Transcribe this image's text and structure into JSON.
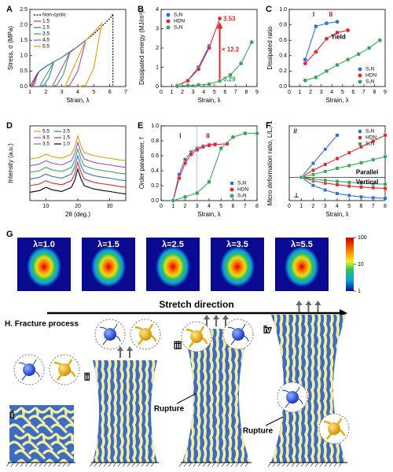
{
  "chart_data": [
    {
      "type": "line",
      "label": "A",
      "xlabel": "Strain, λ",
      "ylabel": "Stress, σ (MPa)",
      "xlim": [
        1,
        7
      ],
      "xticks": [
        1,
        2,
        3,
        4,
        5,
        6,
        7
      ],
      "ylim": [
        0,
        2.5
      ],
      "yticks": [
        {
          "value": 0,
          "label": "0.0"
        },
        {
          "value": 0.5,
          "label": "0.5"
        },
        {
          "value": 1,
          "label": "1.0"
        },
        {
          "value": 1.5,
          "label": "1.5"
        },
        {
          "value": 2,
          "label": "2.0"
        },
        {
          "value": 2.5,
          "label": "2.5"
        }
      ],
      "legend": "upper left",
      "series": [
        {
          "name": "Non-cyclic",
          "color": "#000000",
          "dash": true,
          "x": [
            1,
            1.5,
            2,
            3,
            4,
            5,
            6,
            6.2,
            6.2
          ],
          "values": [
            0,
            0.45,
            0.65,
            0.95,
            1.3,
            1.7,
            2.2,
            2.35,
            0
          ]
        },
        {
          "name": "1.5",
          "color": "#e0282e",
          "x": [
            1,
            1.5,
            1.3,
            1.15
          ],
          "values": [
            0,
            0.45,
            0.1,
            0
          ]
        },
        {
          "name": "2.5",
          "color": "#2f6fd6",
          "x": [
            1.1,
            1.6,
            2,
            2.5,
            2.2,
            1.9,
            1.6
          ],
          "values": [
            0,
            0.5,
            0.65,
            0.8,
            0.3,
            0.05,
            0
          ]
        },
        {
          "name": "3.5",
          "color": "#3aa655",
          "x": [
            1.6,
            2.5,
            3,
            3.5,
            3.1,
            2.7,
            2.4
          ],
          "values": [
            0,
            0.8,
            0.95,
            1.1,
            0.4,
            0.05,
            0
          ]
        },
        {
          "name": "4.5",
          "color": "#9b4fc9",
          "x": [
            2.4,
            3.5,
            4,
            4.5,
            4,
            3.5,
            3.2
          ],
          "values": [
            0,
            1.1,
            1.3,
            1.5,
            0.5,
            0.05,
            0
          ]
        },
        {
          "name": "5.5",
          "color": "#d9a400",
          "x": [
            3.2,
            4.5,
            5,
            5.5,
            5,
            4.5,
            4.1
          ],
          "values": [
            0,
            1.5,
            1.75,
            2.05,
            0.6,
            0.05,
            0
          ]
        }
      ]
    },
    {
      "type": "scatter",
      "connect": true,
      "label": "B",
      "xlabel": "Strain, λ",
      "ylabel": "Dissipated energy (MJ/m³)",
      "xlim": [
        0,
        9
      ],
      "xticks": [
        0,
        1,
        2,
        3,
        4,
        5,
        6,
        7,
        8,
        9
      ],
      "ylim": [
        0,
        4
      ],
      "yticks": [
        0,
        1,
        2,
        3,
        4
      ],
      "legend": "upper left",
      "annotations": [
        "3.53",
        "× 12.2",
        "0.29"
      ],
      "series": [
        {
          "name": "S₁N",
          "color": "#2f6fd6",
          "marker": "circle",
          "x": [
            1.5,
            2.5,
            3.5,
            4.5
          ],
          "values": [
            0.05,
            0.3,
            1.0,
            2.1
          ]
        },
        {
          "name": "HDN",
          "color": "#e0282e",
          "marker": "circle",
          "x": [
            1.5,
            2.5,
            3.5,
            4.5,
            5.5
          ],
          "values": [
            0.05,
            0.3,
            0.9,
            2.0,
            3.53
          ]
        },
        {
          "name": "S₂N",
          "color": "#3aa655",
          "marker": "circle",
          "x": [
            1.5,
            2.5,
            3.5,
            4.5,
            5.5,
            6.5,
            7.5,
            8.5
          ],
          "values": [
            0.02,
            0.05,
            0.08,
            0.12,
            0.29,
            0.6,
            1.2,
            2.3
          ]
        }
      ]
    },
    {
      "type": "scatter",
      "connect": true,
      "label": "C",
      "xlabel": "Strain, λ",
      "ylabel": "Dissipated ratio",
      "xlim": [
        0,
        9
      ],
      "xticks": [
        0,
        1,
        2,
        3,
        4,
        5,
        6,
        7,
        8,
        9
      ],
      "ylim": [
        0,
        1
      ],
      "yticks": [
        {
          "value": 0,
          "label": "0.0"
        },
        {
          "value": 0.2,
          "label": "0.2"
        },
        {
          "value": 0.4,
          "label": "0.4"
        },
        {
          "value": 0.6,
          "label": "0.6"
        },
        {
          "value": 0.8,
          "label": "0.8"
        },
        {
          "value": 1,
          "label": "1.0"
        }
      ],
      "legend": "lower right",
      "annotations": [
        "I",
        "II",
        "Yield"
      ],
      "series": [
        {
          "name": "S₁N",
          "color": "#2f6fd6",
          "marker": "circle",
          "x": [
            1.5,
            2.5,
            3.5,
            4.5
          ],
          "values": [
            0.35,
            0.78,
            0.82,
            0.84
          ]
        },
        {
          "name": "HDN",
          "color": "#e0282e",
          "marker": "circle",
          "x": [
            1.5,
            2.5,
            3.5,
            4.5,
            5.5
          ],
          "values": [
            0.3,
            0.45,
            0.62,
            0.7,
            0.73
          ]
        },
        {
          "name": "S₂N",
          "color": "#3aa655",
          "marker": "circle",
          "x": [
            1.5,
            2.5,
            3.5,
            4.5,
            5.5,
            6.5,
            7.5,
            8.5
          ],
          "values": [
            0.08,
            0.12,
            0.2,
            0.28,
            0.35,
            0.42,
            0.5,
            0.6
          ]
        }
      ]
    },
    {
      "type": "line",
      "label": "D",
      "xlabel": "2θ (deg.)",
      "ylabel": "Intensity (a.u.)",
      "xlim": [
        5,
        35
      ],
      "xticks": [
        10,
        20,
        30
      ],
      "ylim": [
        0,
        9
      ],
      "legend": "upper left",
      "series": [
        {
          "name": "5.5",
          "color": "#d9a400",
          "x": [
            5,
            8,
            10,
            12,
            15,
            18,
            19,
            20,
            21,
            22,
            25,
            28,
            30,
            33,
            35
          ],
          "values": [
            5.0,
            5.2,
            5.6,
            5.3,
            5.1,
            5.6,
            6.4,
            7.8,
            6.6,
            5.8,
            5.4,
            5.2,
            5.1,
            4.9,
            4.8
          ]
        },
        {
          "name": "4.5",
          "color": "#9b4fc9",
          "x": [
            5,
            8,
            10,
            12,
            15,
            18,
            19,
            20,
            21,
            22,
            25,
            28,
            30,
            33,
            35
          ],
          "values": [
            4.2,
            4.4,
            4.8,
            4.5,
            4.3,
            4.8,
            5.6,
            7.0,
            5.8,
            5.0,
            4.6,
            4.4,
            4.3,
            4.1,
            4.0
          ]
        },
        {
          "name": "3.5",
          "color": "#3aa655",
          "x": [
            5,
            8,
            10,
            12,
            15,
            18,
            19,
            20,
            21,
            22,
            25,
            28,
            30,
            33,
            35
          ],
          "values": [
            3.4,
            3.6,
            4.0,
            3.7,
            3.5,
            4.0,
            4.8,
            6.2,
            5.0,
            4.2,
            3.8,
            3.6,
            3.5,
            3.3,
            3.2
          ]
        },
        {
          "name": "2.5",
          "color": "#2f6fd6",
          "x": [
            5,
            8,
            10,
            12,
            15,
            18,
            19,
            20,
            21,
            22,
            25,
            28,
            30,
            33,
            35
          ],
          "values": [
            2.6,
            2.8,
            3.2,
            2.9,
            2.7,
            3.2,
            4.0,
            5.4,
            4.2,
            3.4,
            3.0,
            2.8,
            2.7,
            2.5,
            2.4
          ]
        },
        {
          "name": "1.5",
          "color": "#e0282e",
          "x": [
            5,
            8,
            10,
            12,
            15,
            18,
            19,
            20,
            21,
            22,
            25,
            28,
            30,
            33,
            35
          ],
          "values": [
            1.8,
            2.0,
            2.4,
            2.1,
            1.9,
            2.4,
            3.2,
            4.6,
            3.4,
            2.6,
            2.2,
            2.0,
            1.9,
            1.7,
            1.6
          ]
        },
        {
          "name": "1.0",
          "color": "#000000",
          "x": [
            5,
            8,
            10,
            12,
            15,
            18,
            19,
            20,
            21,
            22,
            25,
            28,
            30,
            33,
            35
          ],
          "values": [
            1.0,
            1.2,
            1.6,
            1.3,
            1.1,
            1.6,
            2.4,
            3.8,
            2.6,
            1.8,
            1.4,
            1.2,
            1.1,
            0.9,
            0.8
          ]
        }
      ]
    },
    {
      "type": "scatter",
      "connect": true,
      "label": "E",
      "xlabel": "Strain, λ",
      "ylabel": "Order parameter, f",
      "xlim": [
        0,
        8
      ],
      "xticks": [
        0,
        1,
        2,
        3,
        4,
        5,
        6,
        7,
        8
      ],
      "ylim": [
        0,
        1
      ],
      "yticks": [
        {
          "value": 0,
          "label": "0.0"
        },
        {
          "value": 0.2,
          "label": "0.2"
        },
        {
          "value": 0.4,
          "label": "0.4"
        },
        {
          "value": 0.6,
          "label": "0.6"
        },
        {
          "value": 0.8,
          "label": "0.8"
        },
        {
          "value": 1,
          "label": "1.0"
        }
      ],
      "legend": "lower right",
      "annotations": [
        "I",
        "II"
      ],
      "series": [
        {
          "name": "S₁N",
          "color": "#2f6fd6",
          "marker": "square",
          "x": [
            1,
            1.5,
            2,
            2.5,
            3,
            3.5,
            4,
            4.5
          ],
          "values": [
            0,
            0.35,
            0.55,
            0.65,
            0.7,
            0.73,
            0.75,
            0.76
          ]
        },
        {
          "name": "HDN",
          "color": "#e0282e",
          "marker": "circle",
          "x": [
            1,
            1.5,
            2,
            2.5,
            3,
            3.5,
            4,
            4.5,
            5.5
          ],
          "values": [
            0,
            0.3,
            0.5,
            0.62,
            0.68,
            0.72,
            0.74,
            0.75,
            0.76
          ]
        },
        {
          "name": "S₂N",
          "color": "#3aa655",
          "marker": "circle",
          "x": [
            1,
            2,
            3,
            4,
            5,
            6,
            7,
            8
          ],
          "values": [
            0,
            0.05,
            0.1,
            0.25,
            0.7,
            0.85,
            0.9,
            0.9
          ]
        }
      ]
    },
    {
      "type": "scatter",
      "connect": true,
      "label": "F",
      "xlabel": "Strain, λ",
      "ylabel": "Micro deformation ratio, L/L₀-1",
      "xlim": [
        0,
        8
      ],
      "xticks": [
        0,
        1,
        2,
        3,
        4,
        5,
        6,
        7,
        8
      ],
      "ylim": [
        -1,
        2.2
      ],
      "legend": "upper right",
      "annotations": [
        "//",
        "Parallel",
        "Vertical",
        "⊥"
      ],
      "series": [
        {
          "name": "S₁N",
          "color": "#2f6fd6",
          "marker": "square",
          "x": [
            1,
            2,
            3,
            4,
            5,
            6,
            7,
            8
          ],
          "values": [
            0,
            0.6,
            1.2,
            1.8,
            null,
            null,
            null,
            null
          ],
          "vertical": [
            0,
            -0.35,
            -0.55,
            -0.7,
            -0.78,
            -0.84,
            -0.88,
            -0.9
          ]
        },
        {
          "name": "HDN",
          "color": "#e0282e",
          "marker": "square",
          "x": [
            1,
            2,
            3,
            4,
            5,
            6,
            7,
            8
          ],
          "values": [
            0,
            0.3,
            0.55,
            0.8,
            1.05,
            1.3,
            1.55,
            1.8
          ],
          "vertical": [
            0,
            -0.15,
            -0.25,
            -0.32,
            -0.38,
            -0.42,
            -0.45,
            -0.48
          ]
        },
        {
          "name": "S₂N",
          "color": "#3aa655",
          "marker": "square",
          "x": [
            1,
            2,
            3,
            4,
            5,
            6,
            7,
            8
          ],
          "values": [
            0,
            0.12,
            0.25,
            0.38,
            0.5,
            0.62,
            0.75,
            0.88
          ],
          "vertical": [
            0,
            -0.08,
            -0.13,
            -0.18,
            -0.22,
            -0.25,
            -0.28,
            -0.3
          ]
        }
      ]
    }
  ],
  "heatmaps": {
    "label": "G",
    "panels": [
      "λ=1.0",
      "λ=1.5",
      "λ=2.5",
      "λ=3.5",
      "λ=5.5"
    ],
    "colorbar": {
      "scale": "log",
      "ticks": [
        1,
        10,
        100
      ]
    },
    "caption": "Stretch direction"
  },
  "fracture": {
    "title": "H. Fracture process",
    "stages": [
      "i",
      "ii",
      "iii",
      "iv"
    ],
    "annotations": [
      "Rupture",
      "Rupture"
    ]
  }
}
